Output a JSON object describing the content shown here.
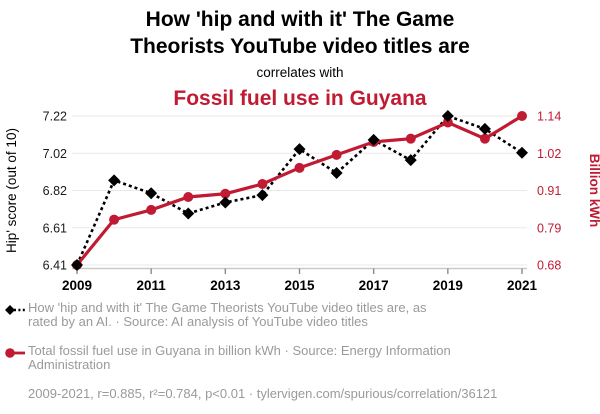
{
  "title": {
    "line1": "How 'hip and with it' The Game",
    "line2": "Theorists YouTube video titles are",
    "connector": "correlates with",
    "subject2": "Fossil fuel use in Guyana"
  },
  "colors": {
    "accent_red": "#c11b33",
    "series_black": "#000000",
    "grid": "#e9e9e9",
    "axis_line": "#c9c9c9",
    "axis_tick": "#8a8a8a",
    "tick_label": "#1a1a1a",
    "legend_gray": "#9a9a9a"
  },
  "chart_data": {
    "type": "line",
    "title": "How 'hip and with it' The Game Theorists YouTube video titles are correlates with Fossil fuel use in Guyana",
    "x": [
      2009,
      2010,
      2011,
      2012,
      2013,
      2014,
      2015,
      2016,
      2017,
      2018,
      2019,
      2020,
      2021
    ],
    "x_tick_labels": [
      "2009",
      "2011",
      "2013",
      "2015",
      "2017",
      "2019",
      "2021"
    ],
    "grid": true,
    "legend_position": "bottom",
    "left_axis": {
      "label": "Hip' score (out of 10)",
      "min": 6.41,
      "max": 7.22,
      "ticks_top_to_bottom": [
        "7.22",
        "7.02",
        "6.82",
        "6.61",
        "6.41"
      ]
    },
    "right_axis": {
      "label": "Billion kWh",
      "min": 0.68,
      "max": 1.14,
      "ticks_top_to_bottom": [
        "1.14",
        "1.02",
        "0.91",
        "0.79",
        "0.68"
      ]
    },
    "series": [
      {
        "name": "How 'hip and with it' The Game Theorists YouTube video titles are",
        "axis": "left",
        "color": "#000000",
        "line_style": "dotted",
        "marker": "diamond",
        "values": [
          6.41,
          6.87,
          6.8,
          6.69,
          6.75,
          6.79,
          7.04,
          6.91,
          7.09,
          6.98,
          7.22,
          7.15,
          7.02
        ]
      },
      {
        "name": "Total fossil fuel use in Guyana",
        "axis": "right",
        "color": "#c11b33",
        "line_style": "solid",
        "marker": "circle",
        "values": [
          0.68,
          0.82,
          0.85,
          0.89,
          0.9,
          0.93,
          0.98,
          1.02,
          1.06,
          1.07,
          1.12,
          1.07,
          1.14
        ]
      }
    ]
  },
  "legend": {
    "items": [
      {
        "line1": "How 'hip and with it' The Game Theorists YouTube video titles are, as",
        "line2": "rated by an AI. · Source: AI analysis of YouTube video titles"
      },
      {
        "line1": "Total fossil fuel use in Guyana in billion kWh · Source: Energy Information",
        "line2": "Administration"
      }
    ],
    "footer": "2009-2021, r=0.885, r²=0.784, p<0.01 · tylervigen.com/spurious/correlation/36121"
  }
}
